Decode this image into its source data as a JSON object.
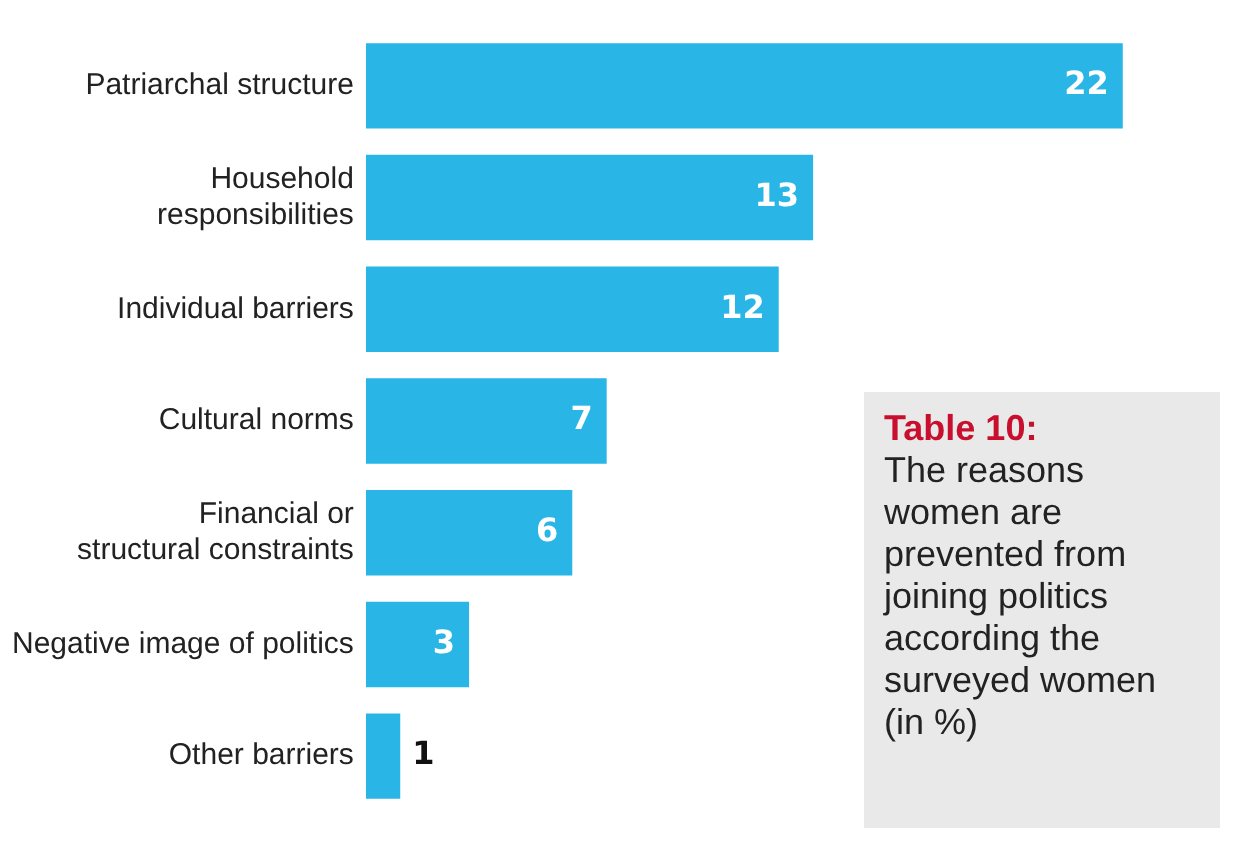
{
  "chart_data": {
    "type": "bar",
    "orientation": "horizontal",
    "title": "Table 10:",
    "subtitle": "The reasons women are prevented from joining politics according the surveyed women (in %)",
    "categories": [
      "Patriarchal structure",
      "Household\nresponsibilities",
      "Individual barriers",
      "Cultural norms",
      "Financial or\nstructural constraints",
      "Negative image of politics",
      "Other barriers"
    ],
    "values": [
      22,
      13,
      12,
      7,
      6,
      3,
      1
    ],
    "color": "#29b6e6",
    "data_labels": true,
    "grid": false,
    "legend": false
  }
}
